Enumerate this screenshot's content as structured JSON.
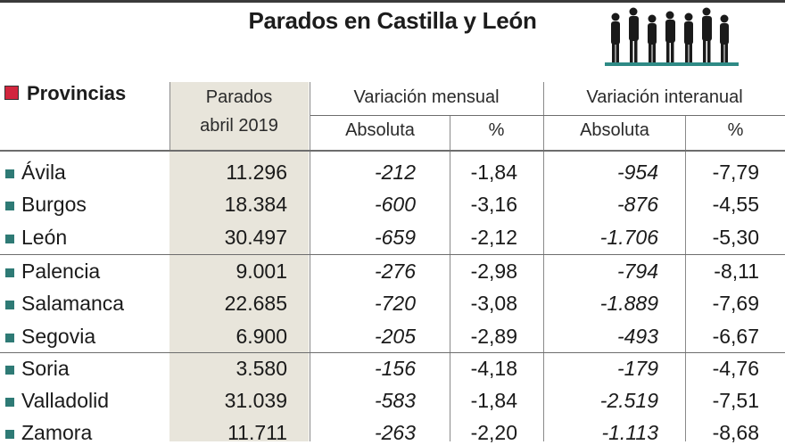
{
  "chart_data": {
    "type": "table",
    "title": "Parados en Castilla y León",
    "columns": {
      "provincias": "Provincias",
      "parados_line1": "Parados",
      "parados_line2": "abril 2019",
      "mensual": "Variación mensual",
      "interanual": "Variación interanual",
      "absoluta": "Absoluta",
      "pct": "%"
    },
    "rows": [
      {
        "provincia": "Ávila",
        "parados": "11.296",
        "mensual_abs": "-212",
        "mensual_pct": "-1,84",
        "interanual_abs": "-954",
        "interanual_pct": "-7,79"
      },
      {
        "provincia": "Burgos",
        "parados": "18.384",
        "mensual_abs": "-600",
        "mensual_pct": "-3,16",
        "interanual_abs": "-876",
        "interanual_pct": "-4,55"
      },
      {
        "provincia": "León",
        "parados": "30.497",
        "mensual_abs": "-659",
        "mensual_pct": "-2,12",
        "interanual_abs": "-1.706",
        "interanual_pct": "-5,30"
      },
      {
        "provincia": "Palencia",
        "parados": "9.001",
        "mensual_abs": "-276",
        "mensual_pct": "-2,98",
        "interanual_abs": "-794",
        "interanual_pct": "-8,11"
      },
      {
        "provincia": "Salamanca",
        "parados": "22.685",
        "mensual_abs": "-720",
        "mensual_pct": "-3,08",
        "interanual_abs": "-1.889",
        "interanual_pct": "-7,69"
      },
      {
        "provincia": "Segovia",
        "parados": "6.900",
        "mensual_abs": "-205",
        "mensual_pct": "-2,89",
        "interanual_abs": "-493",
        "interanual_pct": "-6,67"
      },
      {
        "provincia": "Soria",
        "parados": "3.580",
        "mensual_abs": "-156",
        "mensual_pct": "-4,18",
        "interanual_abs": "-179",
        "interanual_pct": "-4,76"
      },
      {
        "provincia": "Valladolid",
        "parados": "31.039",
        "mensual_abs": "-583",
        "mensual_pct": "-1,84",
        "interanual_abs": "-2.519",
        "interanual_pct": "-7,51"
      },
      {
        "provincia": "Zamora",
        "parados": "11.711",
        "mensual_abs": "-263",
        "mensual_pct": "-2,20",
        "interanual_abs": "-1.113",
        "interanual_pct": "-8,68"
      }
    ]
  },
  "colors": {
    "legend_square": "#d2263e",
    "row_bullet": "#2e7a75",
    "highlight_column": "#e8e5db"
  },
  "icons": [
    "queue-of-people-icon",
    "legend-square-icon",
    "row-bullet-icon"
  ]
}
